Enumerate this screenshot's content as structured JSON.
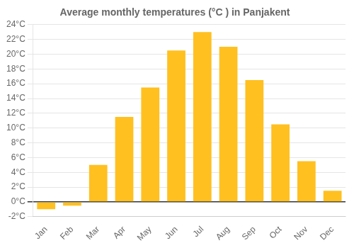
{
  "chart_data": {
    "type": "bar",
    "title": "Average monthly temperatures (°C ) in Panjakent",
    "categories": [
      "Jan",
      "Feb",
      "Mar",
      "Apr",
      "May",
      "Jun",
      "Jul",
      "Aug",
      "Sep",
      "Oct",
      "Nov",
      "Dec"
    ],
    "values": [
      -1.0,
      -0.5,
      5.0,
      11.5,
      15.5,
      20.5,
      23.0,
      21.0,
      16.5,
      10.5,
      5.5,
      1.5
    ],
    "color": "#FFC020",
    "ylim": [
      -2,
      24
    ],
    "yticks": [
      {
        "value": -2,
        "label": "-2°C"
      },
      {
        "value": 0,
        "label": "0°C"
      },
      {
        "value": 2,
        "label": "2°C"
      },
      {
        "value": 4,
        "label": "4°C"
      },
      {
        "value": 6,
        "label": "6°C"
      },
      {
        "value": 8,
        "label": "8°C"
      },
      {
        "value": 10,
        "label": "10°C"
      },
      {
        "value": 12,
        "label": "12°C"
      },
      {
        "value": 14,
        "label": "14°C"
      },
      {
        "value": 16,
        "label": "16°C"
      },
      {
        "value": 18,
        "label": "18°C"
      },
      {
        "value": 20,
        "label": "20°C"
      },
      {
        "value": 22,
        "label": "22°C"
      },
      {
        "value": 24,
        "label": "24°C"
      }
    ],
    "grid": true
  }
}
